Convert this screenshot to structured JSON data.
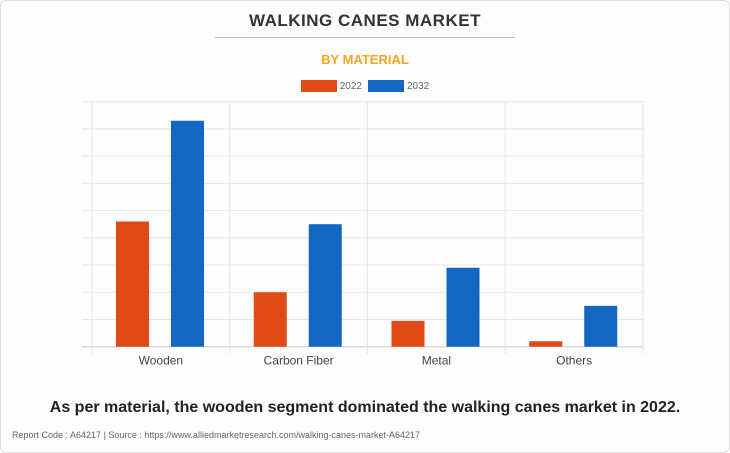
{
  "chart_data": {
    "type": "bar",
    "title": "WALKING CANES MARKET",
    "subtitle": "BY MATERIAL",
    "categories": [
      "Wooden",
      "Carbon Fiber",
      "Metal",
      "Others"
    ],
    "series": [
      {
        "name": "2022",
        "color": "#E04A16",
        "values": [
          4.6,
          2.0,
          0.95,
          0.2
        ]
      },
      {
        "name": "2032",
        "color": "#1366C2",
        "values": [
          8.3,
          4.5,
          2.9,
          1.5
        ]
      }
    ],
    "ylim": [
      0,
      9
    ],
    "y_gridlines": 9,
    "y_tick_labels_shown": false,
    "grid": true,
    "legend": "top-center",
    "xlabel": "",
    "ylabel": ""
  },
  "caption": "As per material, the wooden segment dominated the walking canes market in 2022.",
  "footer": "Report Code : A64217  |  Source : https://www.alliedmarketresearch.com/walking-canes-market-A64217",
  "colors": {
    "subtitle": "#F5A623"
  }
}
